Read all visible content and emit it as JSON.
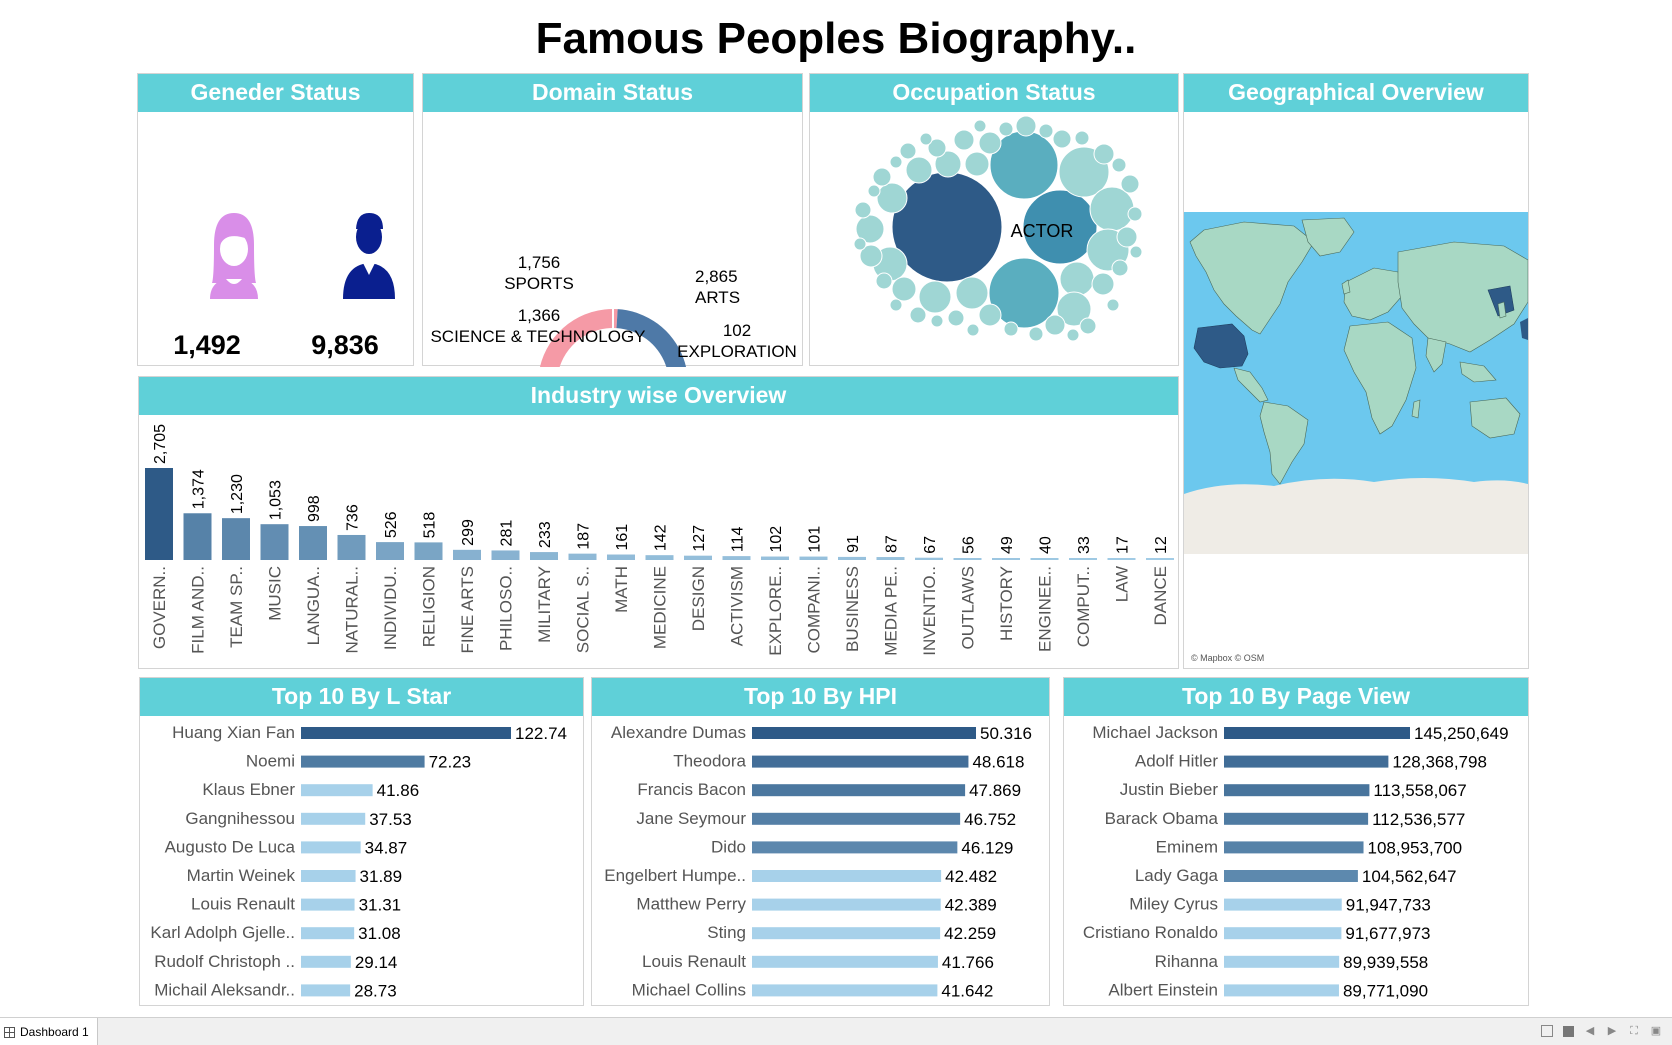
{
  "title": "Famous Peoples Biography..",
  "colors": {
    "header": "#5fd0d8",
    "female": "#d98ee8",
    "male": "#0a1f8f",
    "bar_dark": "#2e5a87",
    "bar_mid": "#6b9bc7",
    "bar_light": "#a7d1ea",
    "ocean": "#6cc8ee",
    "land": "#a8d8c4",
    "ice": "#efece6",
    "highlight_land": "#2e5a87"
  },
  "gender": {
    "title": "Geneder Status",
    "female_icon": "female-icon",
    "male_icon": "male-icon",
    "female_count": "1,492",
    "male_count": "9,836"
  },
  "domain": {
    "title": "Domain Status",
    "segments": [
      {
        "value_label": "1,756",
        "name": "SPORTS",
        "value": 1756,
        "color": "#f59aa6"
      },
      {
        "value_label": "2,865",
        "name": "ARTS",
        "value": 2865,
        "color": "#4e79a7"
      },
      {
        "value_label": "102",
        "name": "EXPLORATION",
        "value": 102,
        "color": "#2e5a87"
      },
      {
        "value_label": "1,366",
        "name": "SCIENCE & TECHNOLOGY",
        "value": 1366,
        "color": "#a8789e"
      }
    ]
  },
  "occupation": {
    "title": "Occupation Status",
    "label": "ACTOR"
  },
  "geo": {
    "title": "Geographical Overview",
    "attribution": "© Mapbox © OSM"
  },
  "chart_data": [
    {
      "type": "bar",
      "title": "Industry wise Overview",
      "categories": [
        "GOVERN..",
        "FILM AND..",
        "TEAM SP..",
        "MUSIC",
        "LANGUA..",
        "NATURAL..",
        "INDIVIDU..",
        "RELIGION",
        "FINE ARTS",
        "PHILOSO..",
        "MILITARY",
        "SOCIAL S..",
        "MATH",
        "MEDICINE",
        "DESIGN",
        "ACTIVISM",
        "EXPLORE..",
        "COMPANI..",
        "BUSINESS",
        "MEDIA PE..",
        "INVENTIO..",
        "OUTLAWS",
        "HISTORY",
        "ENGINEE..",
        "COMPUT..",
        "LAW",
        "DANCE"
      ],
      "values": [
        2705,
        1374,
        1230,
        1053,
        998,
        736,
        526,
        518,
        299,
        281,
        233,
        187,
        161,
        142,
        127,
        114,
        102,
        101,
        91,
        87,
        67,
        56,
        49,
        40,
        33,
        17,
        12
      ],
      "value_labels": [
        "2,705",
        "1,374",
        "1,230",
        "1,053",
        "998",
        "736",
        "526",
        "518",
        "299",
        "281",
        "233",
        "187",
        "161",
        "142",
        "127",
        "114",
        "102",
        "101",
        "91",
        "87",
        "67",
        "56",
        "49",
        "40",
        "33",
        "17",
        "12"
      ]
    },
    {
      "type": "bar",
      "title": "Top 10 By L Star",
      "categories": [
        "Huang Xian Fan",
        "Noemi",
        "Klaus Ebner",
        "Gangnihessou",
        "Augusto De Luca",
        "Martin Weinek",
        "Louis Renault",
        "Karl Adolph Gjelle..",
        "Rudolf Christoph ..",
        "Michail Aleksandr.."
      ],
      "values": [
        122.74,
        72.23,
        41.86,
        37.53,
        34.87,
        31.89,
        31.31,
        31.08,
        29.14,
        28.73
      ],
      "value_labels": [
        "122.74",
        "72.23",
        "41.86",
        "37.53",
        "34.87",
        "31.89",
        "31.31",
        "31.08",
        "29.14",
        "28.73"
      ]
    },
    {
      "type": "bar",
      "title": "Top 10 By HPI",
      "categories": [
        "Alexandre Dumas",
        "Theodora",
        "Francis Bacon",
        "Jane Seymour",
        "Dido",
        "Engelbert Humpe..",
        "Matthew Perry",
        "Sting",
        "Louis Renault",
        "Michael Collins"
      ],
      "values": [
        50.316,
        48.618,
        47.869,
        46.752,
        46.129,
        42.482,
        42.389,
        42.259,
        41.766,
        41.642
      ],
      "value_labels": [
        "50.316",
        "48.618",
        "47.869",
        "46.752",
        "46.129",
        "42.482",
        "42.389",
        "42.259",
        "41.766",
        "41.642"
      ]
    },
    {
      "type": "bar",
      "title": "Top 10 By Page View",
      "categories": [
        "Michael Jackson",
        "Adolf Hitler",
        "Justin Bieber",
        "Barack Obama",
        "Eminem",
        "Lady Gaga",
        "Miley Cyrus",
        "Cristiano Ronaldo",
        "Rihanna",
        "Albert Einstein"
      ],
      "values": [
        145250649,
        128368798,
        113558067,
        112536577,
        108953700,
        104562647,
        91947733,
        91677973,
        89939558,
        89771090
      ],
      "value_labels": [
        "145,250,649",
        "128,368,798",
        "113,558,067",
        "112,536,577",
        "108,953,700",
        "104,562,647",
        "91,947,733",
        "91,677,973",
        "89,939,558",
        "89,771,090"
      ]
    }
  ],
  "footer": {
    "tab_label": "Dashboard 1",
    "tab_icon": "dashboard-grid-icon"
  }
}
